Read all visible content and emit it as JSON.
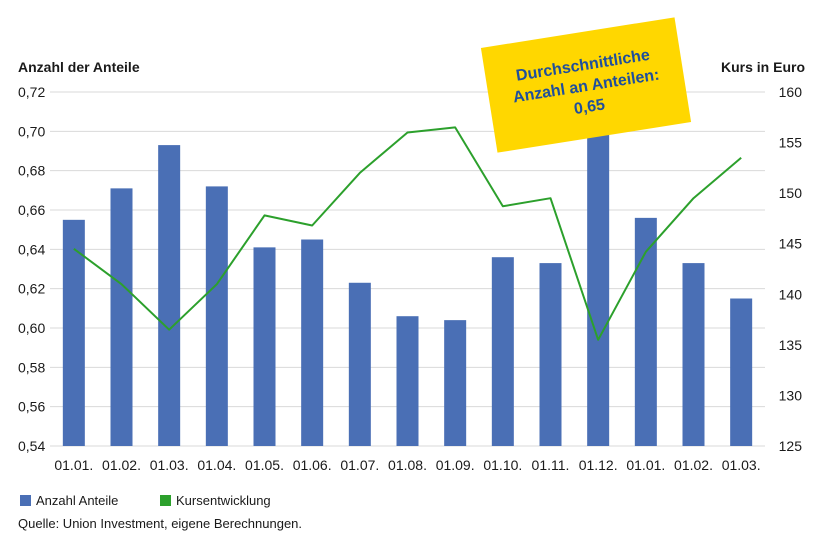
{
  "chart_data": {
    "type": "bar",
    "categories": [
      "01.01.",
      "01.02.",
      "01.03.",
      "01.04.",
      "01.05.",
      "01.06.",
      "01.07.",
      "01.08.",
      "01.09.",
      "01.10.",
      "01.11.",
      "01.12.",
      "01.01.",
      "01.02.",
      "01.03."
    ],
    "series": [
      {
        "name": "Anzahl Anteile",
        "type": "bar",
        "axis": "left",
        "color": "#4a6fb5",
        "values": [
          0.655,
          0.671,
          0.693,
          0.672,
          0.641,
          0.645,
          0.623,
          0.606,
          0.604,
          0.636,
          0.633,
          0.699,
          0.656,
          0.633,
          0.615
        ]
      },
      {
        "name": "Kursentwicklung",
        "type": "line",
        "axis": "right",
        "color": "#2ca02c",
        "values": [
          144.5,
          141.0,
          136.5,
          141.0,
          147.8,
          146.8,
          152.0,
          156.0,
          156.5,
          148.7,
          149.5,
          135.5,
          144.2,
          149.5,
          153.5
        ]
      }
    ],
    "ylabel_left": "Anzahl der Anteile",
    "ylabel_right": "Kurs in Euro",
    "ylim_left": [
      0.54,
      0.72
    ],
    "yticks_left": [
      "0,72",
      "0,70",
      "0,68",
      "0,66",
      "0,64",
      "0,62",
      "0,60",
      "0,58",
      "0,56",
      "0,54"
    ],
    "ylim_right": [
      125,
      160
    ],
    "yticks_right": [
      "160",
      "155",
      "150",
      "145",
      "140",
      "135",
      "130",
      "125"
    ],
    "grid": true,
    "legend_position": "bottom-left",
    "legend": [
      "Anzahl Anteile",
      "Kursentwicklung"
    ],
    "callout": {
      "lines": [
        "Durchschnittliche",
        "Anzahl an Anteilen:",
        "0,65"
      ],
      "background": "#ffd700",
      "text_color": "#1f4f9c"
    },
    "source": "Quelle: Union Investment, eigene Berechnungen."
  }
}
